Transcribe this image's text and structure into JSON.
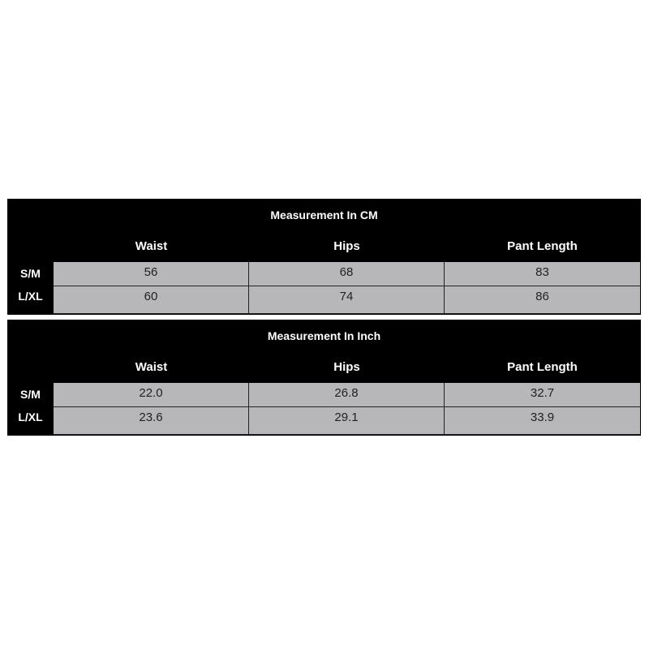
{
  "tables": [
    {
      "title": "Measurement In CM",
      "headers": [
        "Waist",
        "Hips",
        "Pant Length"
      ],
      "rows": [
        {
          "label": "S/M",
          "values": [
            "56",
            "68",
            "83"
          ]
        },
        {
          "label": "L/XL",
          "values": [
            "60",
            "74",
            "86"
          ]
        }
      ]
    },
    {
      "title": "Measurement In Inch",
      "headers": [
        "Waist",
        "Hips",
        "Pant Length"
      ],
      "rows": [
        {
          "label": "S/M",
          "values": [
            "22.0",
            "26.8",
            "32.7"
          ]
        },
        {
          "label": "L/XL",
          "values": [
            "23.6",
            "29.1",
            "33.9"
          ]
        }
      ]
    }
  ]
}
